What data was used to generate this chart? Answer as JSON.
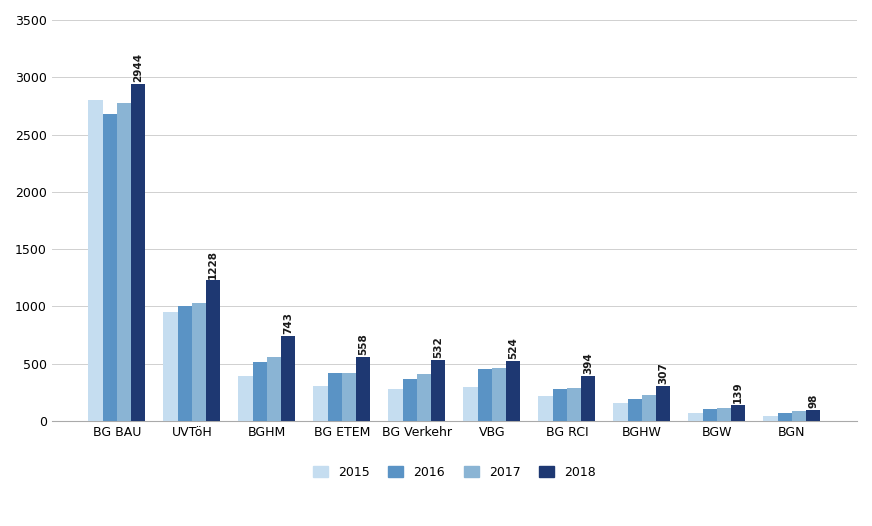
{
  "categories": [
    "BG BAU",
    "UVTöH",
    "BGHM",
    "BG ETEM",
    "BG Verkehr",
    "VBG",
    "BG RCI",
    "BGHW",
    "BGW",
    "BGN"
  ],
  "years": [
    "2015",
    "2016",
    "2017",
    "2018"
  ],
  "values": {
    "2015": [
      2800,
      950,
      390,
      305,
      275,
      300,
      220,
      160,
      65,
      45
    ],
    "2016": [
      2680,
      1000,
      510,
      415,
      370,
      450,
      280,
      190,
      100,
      68
    ],
    "2017": [
      2775,
      1030,
      560,
      420,
      410,
      460,
      290,
      225,
      110,
      82
    ],
    "2018": [
      2944,
      1228,
      743,
      558,
      532,
      524,
      394,
      307,
      139,
      98
    ]
  },
  "bar_colors": {
    "2015": "#c5ddf0",
    "2016": "#5a93c5",
    "2017": "#8ab4d4",
    "2018": "#1e3872"
  },
  "annotated_year": "2018",
  "ylim": [
    0,
    3500
  ],
  "yticks": [
    0,
    500,
    1000,
    1500,
    2000,
    2500,
    3000,
    3500
  ],
  "background_color": "#ffffff",
  "grid_color": "#d0d0d0",
  "bar_width": 0.19,
  "legend_labels": [
    "2015",
    "2016",
    "2017",
    "2018"
  ],
  "annotation_fontsize": 7.5,
  "tick_fontsize": 9,
  "legend_fontsize": 9
}
